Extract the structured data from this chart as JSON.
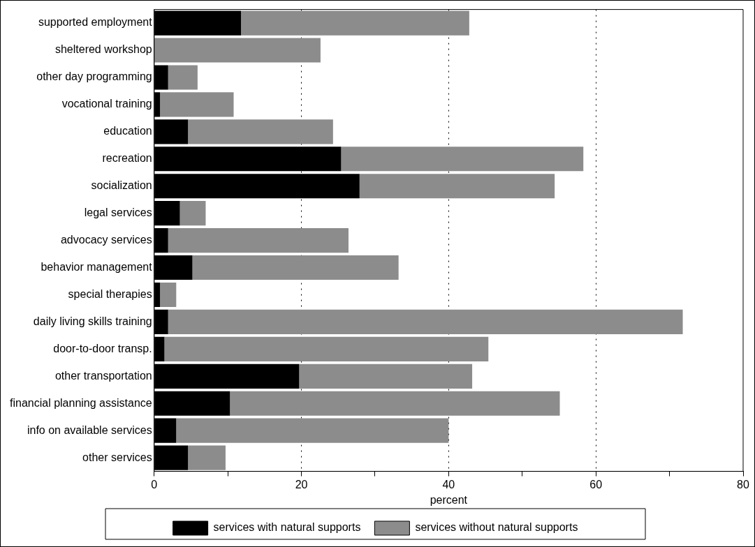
{
  "chart_data": {
    "type": "bar",
    "orientation": "horizontal",
    "stacked": true,
    "xlabel": "percent",
    "categories": [
      "supported employment",
      "sheltered workshop",
      "other day programming",
      "vocational training",
      "education",
      "recreation",
      "socialization",
      "legal services",
      "advocacy services",
      "behavior management",
      "special therapies",
      "daily living skills training",
      "door-to-door transp.",
      "other transportation",
      "financial planning assistance",
      "info on available services",
      "other services"
    ],
    "series": [
      {
        "name": "services with natural supports",
        "color": "#000000",
        "values": [
          11.8,
          0,
          1.9,
          0.8,
          4.6,
          25.4,
          27.9,
          3.5,
          1.9,
          5.2,
          0.8,
          1.9,
          1.4,
          19.7,
          10.3,
          3.0,
          4.6
        ]
      },
      {
        "name": "services without natural supports",
        "color": "#8c8c8c",
        "values": [
          31,
          22.6,
          4,
          10,
          19.7,
          32.9,
          26.5,
          3.5,
          24.5,
          28,
          2.2,
          69.9,
          44,
          23.5,
          44.8,
          37,
          5.1
        ]
      }
    ],
    "xlim": [
      0,
      80
    ],
    "xticks": [
      0,
      {
        "value": 10,
        "label": null
      },
      20,
      {
        "value": 30,
        "label": null
      },
      40,
      {
        "value": 50,
        "label": null
      },
      60,
      {
        "value": 70,
        "label": null
      },
      80
    ],
    "grid": "x",
    "legend": "bottom"
  }
}
